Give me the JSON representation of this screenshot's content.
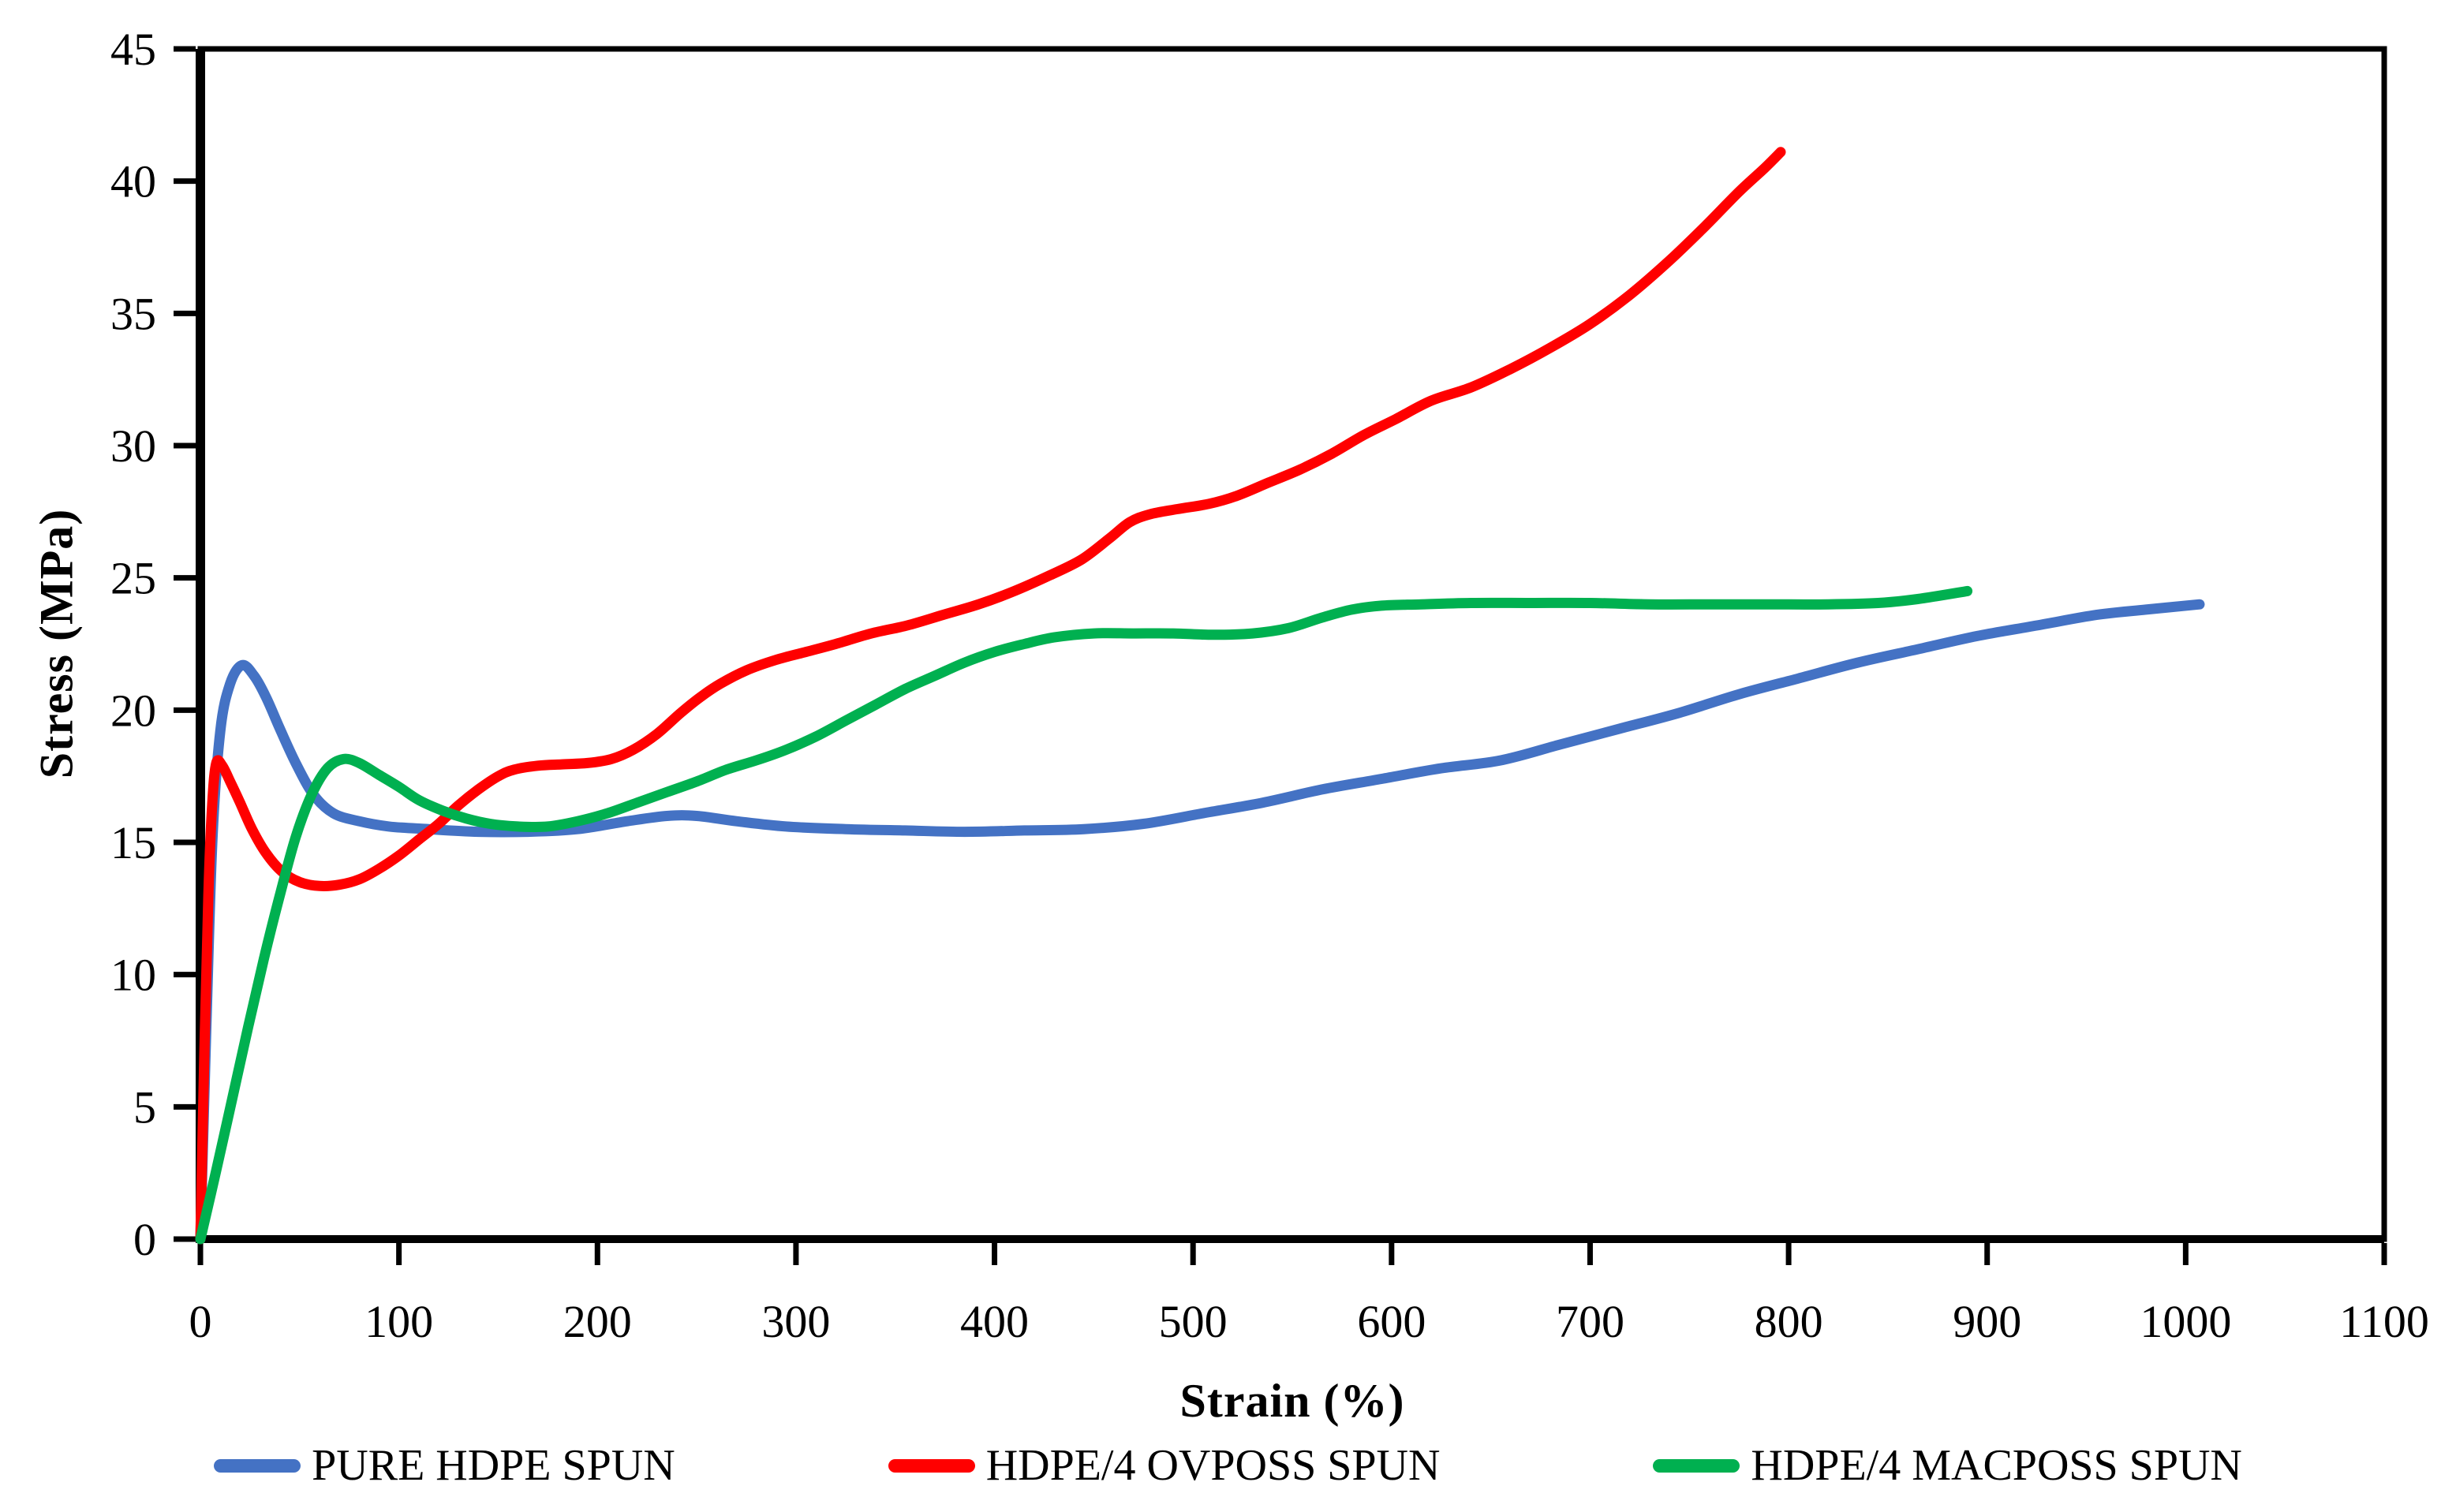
{
  "background": "#ffffff",
  "axes": {
    "x_title": "Strain (%)",
    "y_title": "Stress (MPa)"
  },
  "chart_data": {
    "type": "line",
    "title": "",
    "xlabel": "Strain (%)",
    "ylabel": "Stress (MPa)",
    "xlim": [
      0,
      1100
    ],
    "ylim": [
      0,
      45
    ],
    "xticks": [
      0,
      100,
      200,
      300,
      400,
      500,
      600,
      700,
      800,
      900,
      1000,
      1100
    ],
    "yticks": [
      0,
      5,
      10,
      15,
      20,
      25,
      30,
      35,
      40,
      45
    ],
    "grid": false,
    "legend_position": "bottom-center",
    "axis_color": "#000000",
    "line_width": 13,
    "series": [
      {
        "name": "PURE HDPE SPUN",
        "color": "#4472C4",
        "points": [
          [
            0,
            0
          ],
          [
            3,
            8.0
          ],
          [
            6,
            15.0
          ],
          [
            10,
            19.2
          ],
          [
            15,
            21.0
          ],
          [
            21,
            21.7
          ],
          [
            27,
            21.3
          ],
          [
            33,
            20.5
          ],
          [
            40,
            19.3
          ],
          [
            48,
            18.0
          ],
          [
            57,
            16.8
          ],
          [
            67,
            16.1
          ],
          [
            80,
            15.8
          ],
          [
            95,
            15.6
          ],
          [
            115,
            15.5
          ],
          [
            140,
            15.4
          ],
          [
            165,
            15.4
          ],
          [
            190,
            15.5
          ],
          [
            215,
            15.8
          ],
          [
            235,
            16.0
          ],
          [
            250,
            16.0
          ],
          [
            270,
            15.8
          ],
          [
            295,
            15.6
          ],
          [
            325,
            15.5
          ],
          [
            355,
            15.45
          ],
          [
            385,
            15.4
          ],
          [
            415,
            15.45
          ],
          [
            445,
            15.5
          ],
          [
            475,
            15.7
          ],
          [
            505,
            16.1
          ],
          [
            535,
            16.5
          ],
          [
            565,
            17.0
          ],
          [
            595,
            17.4
          ],
          [
            625,
            17.8
          ],
          [
            655,
            18.1
          ],
          [
            685,
            18.7
          ],
          [
            715,
            19.3
          ],
          [
            745,
            19.9
          ],
          [
            775,
            20.6
          ],
          [
            805,
            21.2
          ],
          [
            835,
            21.8
          ],
          [
            865,
            22.3
          ],
          [
            895,
            22.8
          ],
          [
            925,
            23.2
          ],
          [
            955,
            23.6
          ],
          [
            980,
            23.8
          ],
          [
            1007,
            24.0
          ]
        ]
      },
      {
        "name": "HDPE/4 OVPOSS SPUN",
        "color": "#FF0000",
        "points": [
          [
            0,
            0
          ],
          [
            2,
            7.0
          ],
          [
            4,
            13.0
          ],
          [
            6,
            16.5
          ],
          [
            8,
            18.0
          ],
          [
            11,
            17.9
          ],
          [
            15,
            17.3
          ],
          [
            20,
            16.5
          ],
          [
            26,
            15.5
          ],
          [
            33,
            14.6
          ],
          [
            41,
            13.9
          ],
          [
            50,
            13.5
          ],
          [
            60,
            13.35
          ],
          [
            70,
            13.4
          ],
          [
            80,
            13.6
          ],
          [
            90,
            14.0
          ],
          [
            100,
            14.5
          ],
          [
            110,
            15.1
          ],
          [
            120,
            15.7
          ],
          [
            130,
            16.4
          ],
          [
            140,
            17.0
          ],
          [
            150,
            17.5
          ],
          [
            158,
            17.75
          ],
          [
            170,
            17.9
          ],
          [
            182,
            17.95
          ],
          [
            195,
            18.0
          ],
          [
            207,
            18.15
          ],
          [
            218,
            18.5
          ],
          [
            230,
            19.1
          ],
          [
            242,
            19.9
          ],
          [
            252,
            20.5
          ],
          [
            262,
            21.0
          ],
          [
            275,
            21.5
          ],
          [
            290,
            21.9
          ],
          [
            305,
            22.2
          ],
          [
            320,
            22.5
          ],
          [
            338,
            22.9
          ],
          [
            356,
            23.2
          ],
          [
            374,
            23.6
          ],
          [
            392,
            24.0
          ],
          [
            410,
            24.5
          ],
          [
            428,
            25.1
          ],
          [
            444,
            25.7
          ],
          [
            458,
            26.5
          ],
          [
            468,
            27.1
          ],
          [
            478,
            27.4
          ],
          [
            492,
            27.6
          ],
          [
            508,
            27.8
          ],
          [
            522,
            28.1
          ],
          [
            538,
            28.6
          ],
          [
            554,
            29.1
          ],
          [
            570,
            29.7
          ],
          [
            586,
            30.4
          ],
          [
            602,
            31.0
          ],
          [
            620,
            31.7
          ],
          [
            640,
            32.2
          ],
          [
            660,
            32.9
          ],
          [
            680,
            33.7
          ],
          [
            700,
            34.6
          ],
          [
            720,
            35.7
          ],
          [
            740,
            37.0
          ],
          [
            758,
            38.3
          ],
          [
            775,
            39.6
          ],
          [
            788,
            40.5
          ],
          [
            796,
            41.1
          ]
        ]
      },
      {
        "name": "HDPE/4 MACPOSS SPUN",
        "color": "#00B050",
        "points": [
          [
            0,
            0
          ],
          [
            8,
            2.6
          ],
          [
            16,
            5.3
          ],
          [
            24,
            8.0
          ],
          [
            32,
            10.6
          ],
          [
            40,
            13.0
          ],
          [
            48,
            15.2
          ],
          [
            56,
            16.8
          ],
          [
            64,
            17.8
          ],
          [
            72,
            18.15
          ],
          [
            80,
            18.0
          ],
          [
            90,
            17.55
          ],
          [
            100,
            17.1
          ],
          [
            110,
            16.6
          ],
          [
            122,
            16.2
          ],
          [
            134,
            15.9
          ],
          [
            146,
            15.7
          ],
          [
            160,
            15.6
          ],
          [
            175,
            15.6
          ],
          [
            190,
            15.8
          ],
          [
            205,
            16.1
          ],
          [
            220,
            16.5
          ],
          [
            235,
            16.9
          ],
          [
            250,
            17.3
          ],
          [
            265,
            17.75
          ],
          [
            280,
            18.1
          ],
          [
            295,
            18.5
          ],
          [
            310,
            19.0
          ],
          [
            325,
            19.6
          ],
          [
            340,
            20.2
          ],
          [
            355,
            20.8
          ],
          [
            370,
            21.3
          ],
          [
            385,
            21.8
          ],
          [
            400,
            22.2
          ],
          [
            415,
            22.5
          ],
          [
            430,
            22.75
          ],
          [
            450,
            22.9
          ],
          [
            470,
            22.9
          ],
          [
            490,
            22.9
          ],
          [
            510,
            22.85
          ],
          [
            530,
            22.9
          ],
          [
            548,
            23.1
          ],
          [
            565,
            23.5
          ],
          [
            580,
            23.8
          ],
          [
            595,
            23.95
          ],
          [
            615,
            24.0
          ],
          [
            640,
            24.05
          ],
          [
            670,
            24.05
          ],
          [
            700,
            24.05
          ],
          [
            730,
            24.0
          ],
          [
            760,
            24.0
          ],
          [
            790,
            24.0
          ],
          [
            820,
            24.0
          ],
          [
            845,
            24.05
          ],
          [
            865,
            24.2
          ],
          [
            890,
            24.5
          ]
        ]
      }
    ]
  }
}
